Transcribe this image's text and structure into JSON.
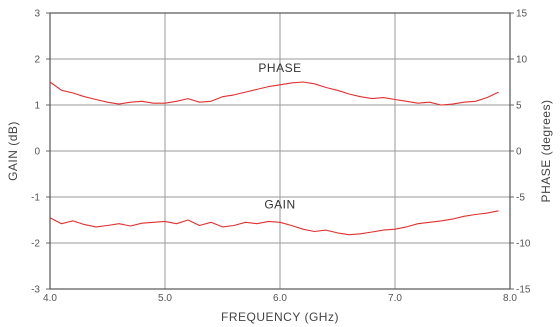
{
  "chart_data": {
    "type": "line",
    "xlabel": "FREQUENCY (GHz)",
    "ylabel_left": "GAIN (dB)",
    "ylabel_right": "PHASE (degrees)",
    "xlim": [
      4.0,
      8.0
    ],
    "ylim_left": [
      -3,
      3
    ],
    "ylim_right": [
      -15,
      15
    ],
    "x_ticks": [
      "4.0",
      "5.0",
      "6.0",
      "7.0",
      "8.0"
    ],
    "y_ticks_left": [
      "3",
      "2",
      "1",
      "0",
      "-1",
      "-2",
      "-3"
    ],
    "y_ticks_right": [
      "15",
      "10",
      "5",
      "0",
      "-5",
      "-10",
      "-15"
    ],
    "grid": true,
    "line_color": "#e03030",
    "annotations": [
      "PHASE",
      "GAIN"
    ],
    "series": [
      {
        "axis": "right",
        "x": [
          4.0,
          4.1,
          4.2,
          4.3,
          4.4,
          4.5,
          4.6,
          4.7,
          4.8,
          4.9,
          5.0,
          5.1,
          5.2,
          5.3,
          5.4,
          5.5,
          5.6,
          5.7,
          5.8,
          5.9,
          6.0,
          6.1,
          6.2,
          6.3,
          6.4,
          6.5,
          6.6,
          6.7,
          6.8,
          6.9,
          7.0,
          7.1,
          7.2,
          7.3,
          7.4,
          7.5,
          7.6,
          7.7,
          7.8,
          7.9
        ],
        "y": [
          7.5,
          6.6,
          6.3,
          5.9,
          5.6,
          5.3,
          5.1,
          5.3,
          5.4,
          5.2,
          5.2,
          5.4,
          5.7,
          5.3,
          5.4,
          5.9,
          6.1,
          6.4,
          6.7,
          7.0,
          7.2,
          7.4,
          7.5,
          7.3,
          6.9,
          6.6,
          6.2,
          5.9,
          5.7,
          5.8,
          5.6,
          5.4,
          5.2,
          5.3,
          5.0,
          5.1,
          5.3,
          5.4,
          5.8,
          6.4
        ]
      },
      {
        "axis": "left",
        "x": [
          4.0,
          4.1,
          4.2,
          4.3,
          4.4,
          4.5,
          4.6,
          4.7,
          4.8,
          4.9,
          5.0,
          5.1,
          5.2,
          5.3,
          5.4,
          5.5,
          5.6,
          5.7,
          5.8,
          5.9,
          6.0,
          6.1,
          6.2,
          6.3,
          6.4,
          6.5,
          6.6,
          6.7,
          6.8,
          6.9,
          7.0,
          7.1,
          7.2,
          7.3,
          7.4,
          7.5,
          7.6,
          7.7,
          7.8,
          7.9
        ],
        "y": [
          -1.45,
          -1.58,
          -1.52,
          -1.6,
          -1.65,
          -1.62,
          -1.58,
          -1.63,
          -1.57,
          -1.55,
          -1.53,
          -1.58,
          -1.5,
          -1.62,
          -1.55,
          -1.65,
          -1.62,
          -1.55,
          -1.58,
          -1.53,
          -1.55,
          -1.62,
          -1.7,
          -1.75,
          -1.72,
          -1.78,
          -1.82,
          -1.8,
          -1.76,
          -1.72,
          -1.7,
          -1.65,
          -1.58,
          -1.55,
          -1.52,
          -1.48,
          -1.42,
          -1.38,
          -1.35,
          -1.3
        ]
      }
    ]
  }
}
